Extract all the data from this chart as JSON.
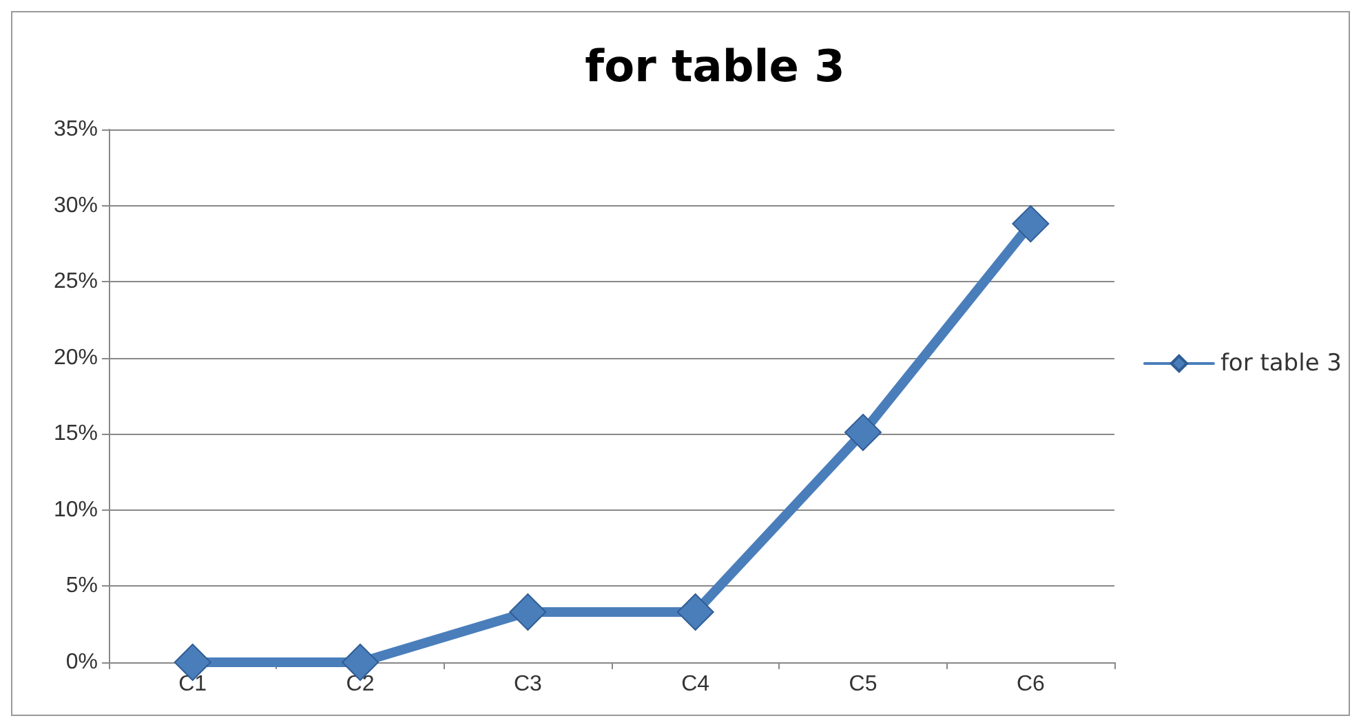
{
  "chart_data": {
    "type": "line",
    "title": "for table 3",
    "categories": [
      "C1",
      "C2",
      "C3",
      "C4",
      "C5",
      "C6"
    ],
    "series": [
      {
        "name": "for table 3",
        "color": "#4a7ebb",
        "values": [
          0,
          0,
          3.3,
          3.3,
          15.1,
          28.8
        ]
      }
    ],
    "ylim": [
      0,
      35
    ],
    "yticks": [
      {
        "value": 0,
        "label": "0%"
      },
      {
        "value": 5,
        "label": "5%"
      },
      {
        "value": 10,
        "label": "10%"
      },
      {
        "value": 15,
        "label": "15%"
      },
      {
        "value": 20,
        "label": "20%"
      },
      {
        "value": 25,
        "label": "25%"
      },
      {
        "value": 30,
        "label": "30%"
      },
      {
        "value": 35,
        "label": "35%"
      }
    ],
    "grid": "y",
    "legend": "right",
    "marker": "diamond",
    "line_style": "solid"
  }
}
